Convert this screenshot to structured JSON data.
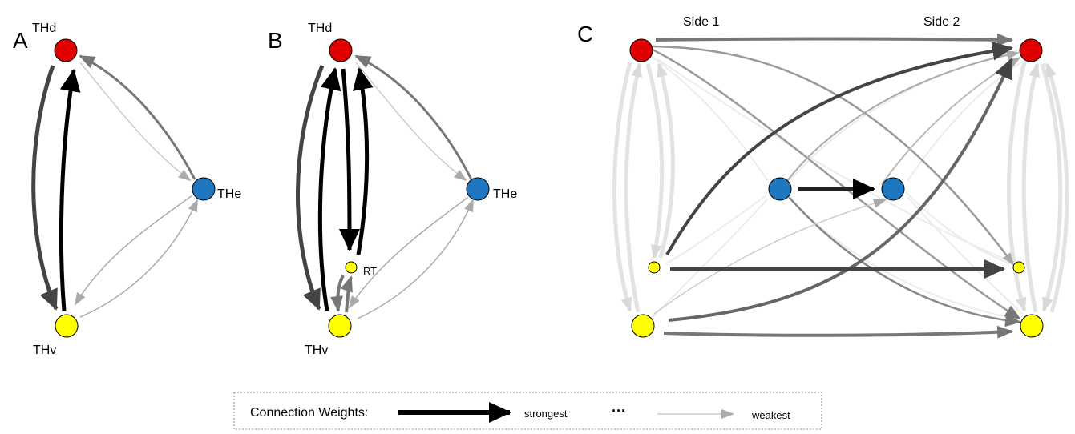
{
  "panels": {
    "a": {
      "letter": "A",
      "thd": "THd",
      "the": "THe",
      "thv": "THv"
    },
    "b": {
      "letter": "B",
      "thd": "THd",
      "the": "THe",
      "thv": "THv",
      "rt": "RT"
    },
    "c": {
      "letter": "C",
      "side1": "Side 1",
      "side2": "Side 2"
    }
  },
  "node_colors": {
    "thd": "#e00000",
    "the": "#1f77c0",
    "thv": "#ffff00",
    "rt": "#ffff00"
  },
  "legend": {
    "title": "Connection Weights:",
    "strongest": "strongest",
    "ellipsis": "···",
    "weakest": "weakest"
  }
}
